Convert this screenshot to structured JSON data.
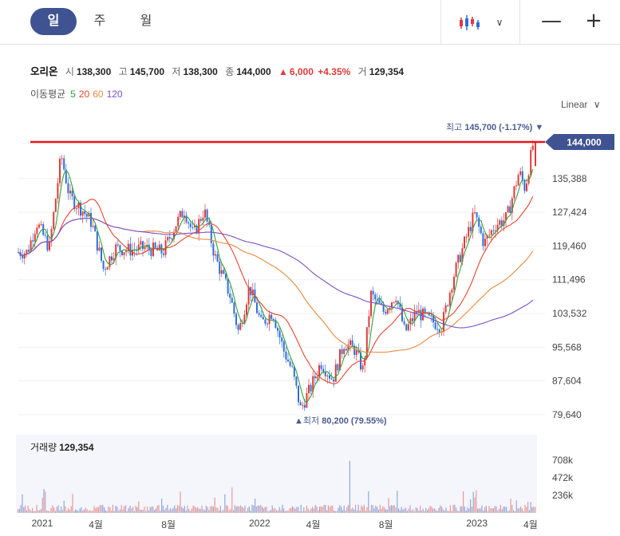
{
  "tabs": [
    {
      "label": "일",
      "active": true
    },
    {
      "label": "주",
      "active": false
    },
    {
      "label": "월",
      "active": false
    }
  ],
  "toolbar": {
    "chart_type_icon": "candlestick-icon",
    "dropdown_icon": "chevron-down-icon",
    "minimize_label": "—",
    "add_label": "+"
  },
  "quote": {
    "name": "오리온",
    "open_label": "시",
    "open": "138,300",
    "high_label": "고",
    "high": "145,700",
    "low_label": "저",
    "low": "138,300",
    "close_label": "종",
    "close": "144,000",
    "change": "6,000",
    "change_pct": "+4.35%",
    "volume_label": "거",
    "volume": "129,354"
  },
  "ma_legend": {
    "label": "이동평균",
    "periods": [
      {
        "label": "5",
        "color": "#35a03a"
      },
      {
        "label": "20",
        "color": "#e8452f"
      },
      {
        "label": "60",
        "color": "#e9883d"
      },
      {
        "label": "120",
        "color": "#7a4fc7"
      }
    ]
  },
  "scale_option": "Linear",
  "colors": {
    "accent": "#3f5291",
    "up": "#e03a3a",
    "down": "#2f6ed8",
    "ma5": "#35a03a",
    "ma20": "#e8452f",
    "ma60": "#e9883d",
    "ma120": "#7a4fc7",
    "current_line": "#e8131b"
  },
  "chart_data": {
    "type": "candlestick",
    "scale": "linear",
    "y_ticks": [
      "135,388",
      "127,424",
      "119,460",
      "111,496",
      "103,532",
      "95,568",
      "87,604",
      "79,640"
    ],
    "ylim": [
      79640,
      145000
    ],
    "current_price_label": "144,000",
    "current_price": 144000,
    "high_label": "최고",
    "high_value": "145,700",
    "high_pct": "(-1.17%)",
    "low_label": "최저",
    "low_value": "80,200",
    "low_pct": "(79.55%)",
    "x_ticks": [
      "2021",
      "4월",
      "8월",
      "2022",
      "4월",
      "8월",
      "2023",
      "4월"
    ],
    "price_path": [
      [
        "2021-01-04",
        118000
      ],
      [
        "2021-01-20",
        125000
      ],
      [
        "2021-02-10",
        119000
      ],
      [
        "2021-03-02",
        141000
      ],
      [
        "2021-03-16",
        131000
      ],
      [
        "2021-04-06",
        128000
      ],
      [
        "2021-04-22",
        125000
      ],
      [
        "2021-05-12",
        114000
      ],
      [
        "2021-06-01",
        119000
      ],
      [
        "2021-06-25",
        118500
      ],
      [
        "2021-07-20",
        119000
      ],
      [
        "2021-08-20",
        118000
      ],
      [
        "2021-09-10",
        124500
      ],
      [
        "2021-09-25",
        128000
      ],
      [
        "2021-10-10",
        122000
      ],
      [
        "2021-10-28",
        128000
      ],
      [
        "2021-11-15",
        117000
      ],
      [
        "2021-12-10",
        108000
      ],
      [
        "2021-12-25",
        99000
      ],
      [
        "2022-01-12",
        110000
      ],
      [
        "2022-02-01",
        101000
      ],
      [
        "2022-02-20",
        104000
      ],
      [
        "2022-03-10",
        95000
      ],
      [
        "2022-03-25",
        90000
      ],
      [
        "2022-04-08",
        81000
      ],
      [
        "2022-04-25",
        86000
      ],
      [
        "2022-05-12",
        92000
      ],
      [
        "2022-06-01",
        88000
      ],
      [
        "2022-06-20",
        96500
      ],
      [
        "2022-07-08",
        95000
      ],
      [
        "2022-07-22",
        90000
      ],
      [
        "2022-08-04",
        108000
      ],
      [
        "2022-08-25",
        104000
      ],
      [
        "2022-09-15",
        108000
      ],
      [
        "2022-09-30",
        99000
      ],
      [
        "2022-10-20",
        104000
      ],
      [
        "2022-11-10",
        102000
      ],
      [
        "2022-12-01",
        100500
      ],
      [
        "2022-12-20",
        112000
      ],
      [
        "2023-01-10",
        121000
      ],
      [
        "2023-01-25",
        127000
      ],
      [
        "2023-02-10",
        120000
      ],
      [
        "2023-03-01",
        124500
      ],
      [
        "2023-03-20",
        126000
      ],
      [
        "2023-04-10",
        137000
      ],
      [
        "2023-04-20",
        133000
      ],
      [
        "2023-05-04",
        144000
      ]
    ],
    "volume_ticks": [
      "708k",
      "472k",
      "236k"
    ],
    "last_volume": 129354
  },
  "volume_panel": {
    "label": "거래량",
    "value": "129,354"
  }
}
